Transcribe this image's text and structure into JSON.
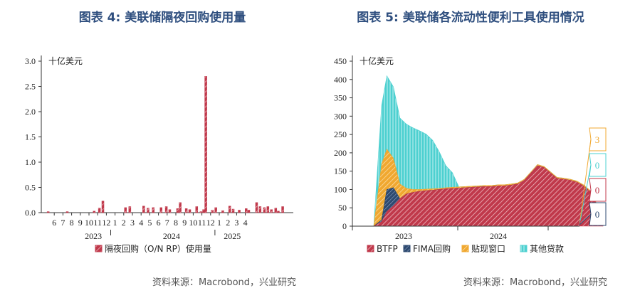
{
  "chart_data": [
    {
      "type": "bar",
      "title": "图表 4:  美联储隔夜回购使用量",
      "unit_label": "十亿美元",
      "ylim": [
        0,
        3.0
      ],
      "yticks": [
        "0.0",
        "0.5",
        "1.0",
        "1.5",
        "2.0",
        "2.5",
        "3.0"
      ],
      "month_ticks": [
        "6",
        "7",
        "8",
        "9",
        "10",
        "11",
        "12",
        "1",
        "2",
        "3",
        "4",
        "5",
        "6",
        "7",
        "8",
        "9",
        "10",
        "11",
        "12",
        "1",
        "2",
        "3",
        "4"
      ],
      "year_labels": [
        "2023",
        "2024",
        "2025"
      ],
      "legend": [
        "隔夜回购（O/N RP）使用量"
      ],
      "color": "#c0394b",
      "series": [
        {
          "name": "隔夜回购（O/N RP）使用量",
          "points": [
            {
              "m": 5.3,
              "v": 0.02
            },
            {
              "m": 7.5,
              "v": 0.02
            },
            {
              "m": 10.6,
              "v": 0.03
            },
            {
              "m": 11.2,
              "v": 0.09
            },
            {
              "m": 11.6,
              "v": 0.23
            },
            {
              "m": 14.2,
              "v": 0.1
            },
            {
              "m": 14.7,
              "v": 0.12
            },
            {
              "m": 16.3,
              "v": 0.13
            },
            {
              "m": 16.8,
              "v": 0.09
            },
            {
              "m": 17.4,
              "v": 0.1
            },
            {
              "m": 18.3,
              "v": 0.1
            },
            {
              "m": 18.9,
              "v": 0.12
            },
            {
              "m": 19.3,
              "v": 0.06
            },
            {
              "m": 20.2,
              "v": 0.08
            },
            {
              "m": 20.5,
              "v": 0.2
            },
            {
              "m": 21.2,
              "v": 0.08
            },
            {
              "m": 21.6,
              "v": 0.06
            },
            {
              "m": 22.4,
              "v": 0.12
            },
            {
              "m": 22.9,
              "v": 0.02
            },
            {
              "m": 23.2,
              "v": 0.06
            },
            {
              "m": 23.45,
              "v": 2.7
            },
            {
              "m": 24.2,
              "v": 0.05
            },
            {
              "m": 24.6,
              "v": 0.1
            },
            {
              "m": 25.4,
              "v": 0.04
            },
            {
              "m": 26.2,
              "v": 0.13
            },
            {
              "m": 26.6,
              "v": 0.07
            },
            {
              "m": 27.3,
              "v": 0.05
            },
            {
              "m": 28.1,
              "v": 0.08
            },
            {
              "m": 28.4,
              "v": 0.05
            },
            {
              "m": 29.3,
              "v": 0.2
            },
            {
              "m": 29.7,
              "v": 0.12
            },
            {
              "m": 30.2,
              "v": 0.1
            },
            {
              "m": 30.6,
              "v": 0.12
            },
            {
              "m": 31.0,
              "v": 0.06
            },
            {
              "m": 31.5,
              "v": 0.09
            },
            {
              "m": 31.8,
              "v": 0.03
            },
            {
              "m": 32.3,
              "v": 0.12
            }
          ]
        }
      ]
    },
    {
      "type": "area",
      "title": "图表 5:  美联储各流动性便利工具使用情况",
      "unit_label": "十亿美元",
      "ylim": [
        0,
        450
      ],
      "yticks": [
        "0",
        "50",
        "100",
        "150",
        "200",
        "250",
        "300",
        "350",
        "400",
        "450"
      ],
      "year_labels": [
        "2023",
        "2024"
      ],
      "legend": [
        "BTFP",
        "FIMA回购",
        "贴现窗口",
        "其他贷款"
      ],
      "colors": {
        "BTFP": "#c0394b",
        "FIMA": "#2e4a70",
        "discount": "#f0a830",
        "other": "#4dd0d0"
      },
      "end_labels": [
        {
          "text": "3",
          "color": "#f0a830"
        },
        {
          "text": "0",
          "color": "#4dd0d0"
        },
        {
          "text": "0",
          "color": "#c0394b"
        },
        {
          "text": "0",
          "color": "#2e4a70"
        }
      ],
      "series": [
        {
          "name": "BTFP",
          "x": [
            0,
            1.2,
            2,
            3,
            4,
            5,
            6,
            7,
            8,
            9,
            10,
            11,
            12,
            13,
            14,
            15,
            16,
            17,
            18,
            19,
            20,
            21,
            22,
            23,
            24,
            25,
            26,
            27,
            28,
            29,
            30,
            31,
            32,
            33,
            34,
            35
          ],
          "values": [
            0,
            12,
            40,
            55,
            75,
            88,
            92,
            95,
            97,
            98,
            100,
            102,
            103,
            104,
            105,
            106,
            107,
            108,
            108,
            110,
            110,
            112,
            115,
            125,
            145,
            165,
            160,
            145,
            130,
            128,
            125,
            120,
            110,
            95,
            60,
            0
          ]
        },
        {
          "name": "FIMA回购",
          "x": [
            0,
            1,
            1.2,
            2,
            3,
            4,
            5,
            6
          ],
          "values": [
            0,
            0,
            5,
            60,
            50,
            0,
            0,
            0
          ]
        },
        {
          "name": "贴现窗口",
          "x": [
            0,
            1,
            1.2,
            2,
            3,
            4,
            5,
            6,
            7,
            8,
            9,
            10,
            11,
            12,
            13,
            14,
            15,
            16,
            17,
            18,
            19,
            20,
            21,
            22,
            23,
            24,
            25,
            26,
            27,
            28,
            29,
            30,
            31,
            32,
            33,
            34,
            35
          ],
          "values": [
            0,
            0,
            152,
            110,
            80,
            40,
            15,
            8,
            5,
            4,
            4,
            3,
            3,
            3,
            3,
            3,
            3,
            3,
            3,
            3,
            3,
            3,
            3,
            3,
            3,
            3,
            3,
            3,
            3,
            3,
            3,
            3,
            3,
            3,
            3,
            3,
            3
          ]
        },
        {
          "name": "其他贷款",
          "x": [
            0,
            1,
            1.2,
            2,
            3,
            4,
            5,
            6,
            7,
            8,
            9,
            10,
            11,
            12,
            13,
            14,
            15,
            16,
            17,
            18,
            19,
            20,
            21,
            22,
            23,
            24,
            25,
            26,
            27,
            28,
            29,
            30,
            31,
            32,
            33,
            34,
            35
          ],
          "values": [
            0,
            0,
            160,
            200,
            195,
            180,
            175,
            168,
            160,
            150,
            132,
            100,
            60,
            40,
            0,
            0,
            0,
            0,
            0,
            0,
            0,
            0,
            0,
            0,
            0,
            0,
            0,
            0,
            0,
            0,
            0,
            0,
            0,
            0,
            0,
            0,
            0
          ]
        }
      ]
    }
  ],
  "source_left": "资料来源：Macrobond，兴业研究",
  "source_right": "资料来源：Macrobond，兴业研究"
}
